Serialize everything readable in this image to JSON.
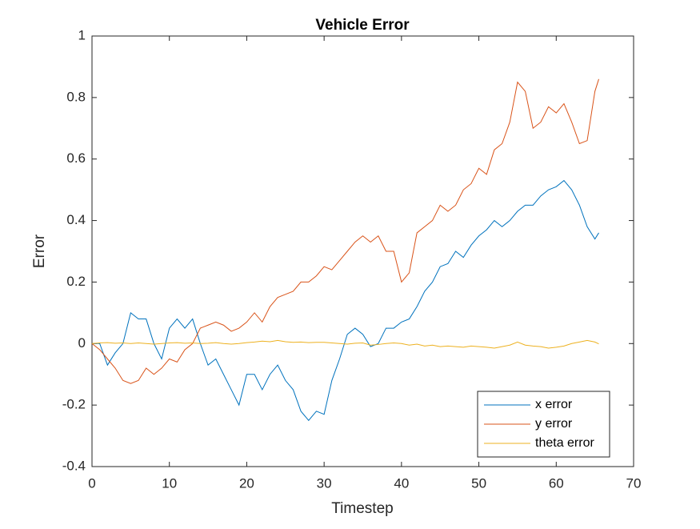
{
  "chart_data": {
    "type": "line",
    "title": "Vehicle Error",
    "x_label": "Timestep",
    "y_label": "Error",
    "x": [
      0,
      1,
      2,
      3,
      4,
      5,
      6,
      7,
      8,
      9,
      10,
      11,
      12,
      13,
      14,
      15,
      16,
      17,
      18,
      19,
      20,
      21,
      22,
      23,
      24,
      25,
      26,
      27,
      28,
      29,
      30,
      31,
      32,
      33,
      34,
      35,
      36,
      37,
      38,
      39,
      40,
      41,
      42,
      43,
      44,
      45,
      46,
      47,
      48,
      49,
      50,
      51,
      52,
      53,
      54,
      55,
      56,
      57,
      58,
      59,
      60,
      61,
      62,
      63,
      64,
      65,
      65.5
    ],
    "series": [
      {
        "name": "x error",
        "color": "#0072bd",
        "values": [
          0,
          0,
          -0.07,
          -0.03,
          0,
          0.1,
          0.08,
          0.08,
          0,
          -0.05,
          0.05,
          0.08,
          0.05,
          0.08,
          0,
          -0.07,
          -0.05,
          -0.1,
          -0.15,
          -0.2,
          -0.1,
          -0.1,
          -0.15,
          -0.1,
          -0.07,
          -0.12,
          -0.15,
          -0.22,
          -0.25,
          -0.22,
          -0.23,
          -0.12,
          -0.05,
          0.03,
          0.05,
          0.03,
          -0.01,
          0,
          0.05,
          0.05,
          0.07,
          0.08,
          0.12,
          0.17,
          0.2,
          0.25,
          0.26,
          0.3,
          0.28,
          0.32,
          0.35,
          0.37,
          0.4,
          0.38,
          0.4,
          0.43,
          0.45,
          0.45,
          0.48,
          0.5,
          0.51,
          0.53,
          0.5,
          0.45,
          0.38,
          0.34,
          0.36
        ]
      },
      {
        "name": "y error",
        "color": "#d95319",
        "values": [
          0,
          -0.02,
          -0.05,
          -0.08,
          -0.12,
          -0.13,
          -0.12,
          -0.08,
          -0.1,
          -0.08,
          -0.05,
          -0.06,
          -0.02,
          0,
          0.05,
          0.06,
          0.07,
          0.06,
          0.04,
          0.05,
          0.07,
          0.1,
          0.07,
          0.12,
          0.15,
          0.16,
          0.17,
          0.2,
          0.2,
          0.22,
          0.25,
          0.24,
          0.27,
          0.3,
          0.33,
          0.35,
          0.33,
          0.35,
          0.3,
          0.3,
          0.2,
          0.23,
          0.36,
          0.38,
          0.4,
          0.45,
          0.43,
          0.45,
          0.5,
          0.52,
          0.57,
          0.55,
          0.63,
          0.65,
          0.72,
          0.85,
          0.82,
          0.7,
          0.72,
          0.77,
          0.75,
          0.78,
          0.72,
          0.65,
          0.66,
          0.82,
          0.86
        ]
      },
      {
        "name": "theta error",
        "color": "#edb120",
        "values": [
          0,
          0.002,
          0.003,
          0.001,
          0.002,
          0,
          0.002,
          0,
          -0.002,
          0,
          0.002,
          0.003,
          0.001,
          0.002,
          0,
          0.001,
          0.003,
          0,
          -0.002,
          0,
          0.003,
          0.005,
          0.008,
          0.006,
          0.01,
          0.006,
          0.004,
          0.005,
          0.003,
          0.004,
          0.004,
          0.002,
          0,
          -0.002,
          0.001,
          0.002,
          -0.005,
          -0.003,
          0,
          0.002,
          0,
          -0.005,
          -0.002,
          -0.008,
          -0.005,
          -0.01,
          -0.008,
          -0.01,
          -0.012,
          -0.008,
          -0.01,
          -0.012,
          -0.015,
          -0.01,
          -0.005,
          0.005,
          -0.005,
          -0.008,
          -0.01,
          -0.015,
          -0.012,
          -0.008,
          0,
          0.005,
          0.01,
          0.005,
          -0.001
        ]
      }
    ],
    "xlim": [
      0,
      70
    ],
    "ylim": [
      -0.4,
      1
    ],
    "xticks": [
      0,
      10,
      20,
      30,
      40,
      50,
      60,
      70
    ],
    "yticks": [
      -0.4,
      -0.2,
      0,
      0.2,
      0.4,
      0.6,
      0.8,
      1
    ],
    "legend": "southeast"
  }
}
